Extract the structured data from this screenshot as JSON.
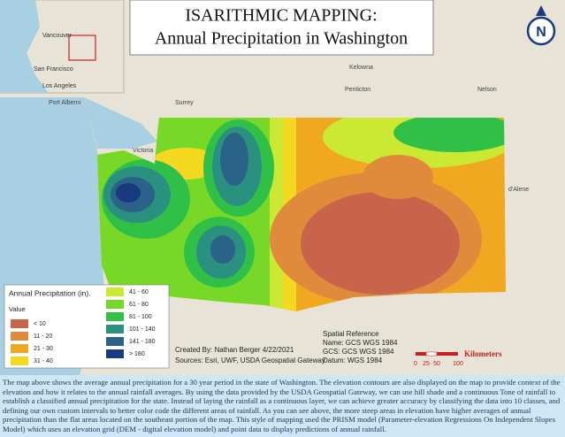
{
  "title": {
    "line1": "ISARITHMIC MAPPING:",
    "line2": "Annual Precipitation in Washington"
  },
  "inset_labels": [
    "Vancouver",
    "San Francisco",
    "Los Angeles"
  ],
  "places": [
    {
      "label": "Port Alberni"
    },
    {
      "label": "Surrey"
    },
    {
      "label": "Victoria"
    },
    {
      "label": "Kelowna"
    },
    {
      "label": "Penticton"
    },
    {
      "label": "Nelson"
    },
    {
      "label": "d'Alene"
    }
  ],
  "north_label": "N",
  "legend": {
    "title": "Annual Precipitation (in).",
    "value_label": "Value",
    "items": [
      {
        "label": "< 10",
        "color": "#c8644a"
      },
      {
        "label": "11 - 20",
        "color": "#e08a3c"
      },
      {
        "label": "21 - 30",
        "color": "#f0a820"
      },
      {
        "label": "31 - 40",
        "color": "#f5d820"
      },
      {
        "label": "41 - 60",
        "color": "#cbe832"
      },
      {
        "label": "61 - 80",
        "color": "#78d828"
      },
      {
        "label": "81 - 100",
        "color": "#30c048"
      },
      {
        "label": "101 - 140",
        "color": "#2a9080"
      },
      {
        "label": "141 - 180",
        "color": "#2a6288"
      },
      {
        "label": "> 180",
        "color": "#1a3a80"
      }
    ]
  },
  "credits": [
    "Created By: Nathan Berger 4/22/2021",
    "Sources: Esri, UWF, USDA Geospatial Gateway"
  ],
  "spatial_reference": [
    "Spatial Reference",
    "Name: GCS WGS 1984",
    "GCS: GCS WGS 1984",
    "Datum: WGS 1984"
  ],
  "scale": {
    "unit": "Kilometers",
    "ticks": [
      "0",
      "25",
      "50",
      "100"
    ]
  },
  "description": "The map above shows the average annual precipitation for a 30 year period in the state of Washington. The elevation contours are also displayed on the map to provide context of the elevation and how it relates to the annual rainfall averages. By using the data provided by the USDA Geospatial Gateway, we can use hill shade and a continuous Tone of rainfall to establish a classified annual precipitation for the state. Instead of laying the rainfall as a continuous layer, we can achieve greater accuracy by classifying the data into 10 classes, and defining our own custom intervals to better color code the different areas of rainfall. As you can see above, the more steep areas in elevation have higher averages of annual precipitation than the flat areas located on the southeast portion of the map. This style of mapping used the PRISM model (Parameter-elevation Regressions On Independent Slopes Model) which uses an elevation grid (DEM - digital elevation model) and point data to display predictions of annual rainfall."
}
